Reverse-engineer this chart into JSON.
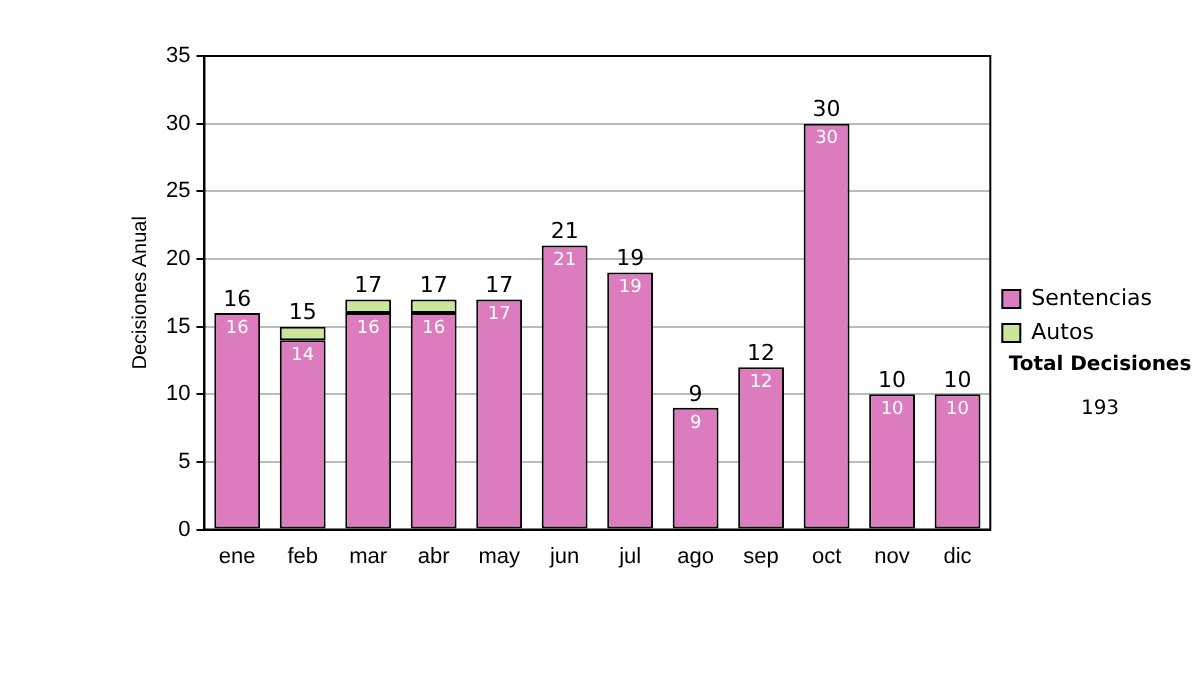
{
  "chart_data": {
    "type": "bar",
    "stacked": true,
    "ylabel": "Decisiones Anual",
    "categories": [
      "ene",
      "feb",
      "mar",
      "abr",
      "may",
      "jun",
      "jul",
      "ago",
      "sep",
      "oct",
      "nov",
      "dic"
    ],
    "series": [
      {
        "name": "Sentencias",
        "color": "#dd7bbf",
        "values": [
          16,
          14,
          16,
          16,
          17,
          21,
          19,
          9,
          12,
          30,
          10,
          10
        ],
        "value_labels": [
          "16",
          "14",
          "16",
          "16",
          "17",
          "21",
          "19",
          "9",
          "12",
          "30",
          "10",
          "10"
        ]
      },
      {
        "name": "Autos",
        "color": "#cce699",
        "values": [
          0,
          1,
          1,
          1,
          0,
          0,
          0,
          0,
          0,
          0,
          0,
          0
        ]
      }
    ],
    "totals": [
      "16",
      "15",
      "17",
      "17",
      "17",
      "21",
      "19",
      "9",
      "12",
      "30",
      "10",
      "10"
    ],
    "ylim": [
      0,
      35
    ],
    "yticks": [
      0,
      5,
      10,
      15,
      20,
      25,
      30,
      35
    ],
    "grid": "y",
    "legend": "right",
    "annotations": [
      "Total Decisiones",
      "193"
    ]
  }
}
